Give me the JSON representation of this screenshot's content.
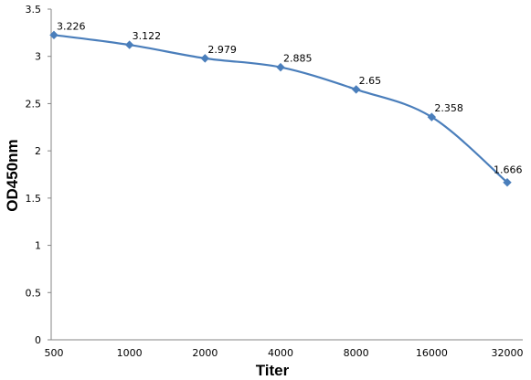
{
  "chart_data": {
    "type": "line",
    "title": "",
    "xlabel": "Titer",
    "ylabel": "OD450nm",
    "categories": [
      "500",
      "1000",
      "2000",
      "4000",
      "8000",
      "16000",
      "32000"
    ],
    "series": [
      {
        "values": [
          3.226,
          3.122,
          2.979,
          2.885,
          2.65,
          2.358,
          1.666
        ],
        "labels": [
          "3.226",
          "3.122",
          "2.979",
          "2.885",
          "2.65",
          "2.358",
          "1.666"
        ],
        "color": "#4a7ebb",
        "marker": "diamond",
        "smooth": true
      }
    ],
    "yticks": [
      "0",
      "0.5",
      "1",
      "1.5",
      "2",
      "2.5",
      "3",
      "3.5"
    ],
    "ylim": [
      0,
      3.5
    ],
    "grid": false,
    "legend": "none"
  }
}
